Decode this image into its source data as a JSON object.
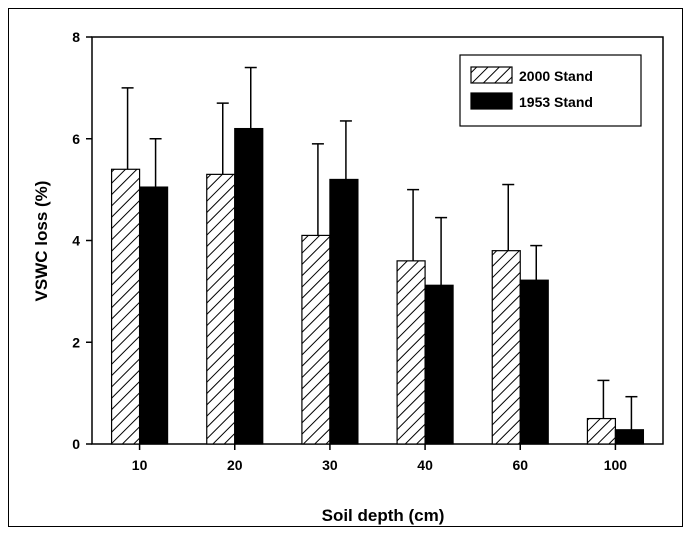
{
  "chart_data": {
    "type": "bar",
    "title": "",
    "xlabel": "Soil depth (cm)",
    "ylabel": "VSWC loss (%)",
    "ylim": [
      0,
      8
    ],
    "yticks": [
      0,
      2,
      4,
      6,
      8
    ],
    "categories": [
      "10",
      "20",
      "30",
      "40",
      "60",
      "100"
    ],
    "series": [
      {
        "name": "2000 Stand",
        "values": [
          5.4,
          5.3,
          4.1,
          3.6,
          3.8,
          0.5
        ],
        "errors": [
          1.6,
          1.4,
          1.8,
          1.4,
          1.3,
          0.75
        ],
        "fill": "hatch"
      },
      {
        "name": "1953 Stand",
        "values": [
          5.05,
          6.2,
          5.2,
          3.12,
          3.22,
          0.28
        ],
        "errors": [
          0.95,
          1.2,
          1.15,
          1.33,
          0.68,
          0.65
        ],
        "fill": "#000000"
      }
    ],
    "legend_position": "top-right",
    "grid": false
  }
}
